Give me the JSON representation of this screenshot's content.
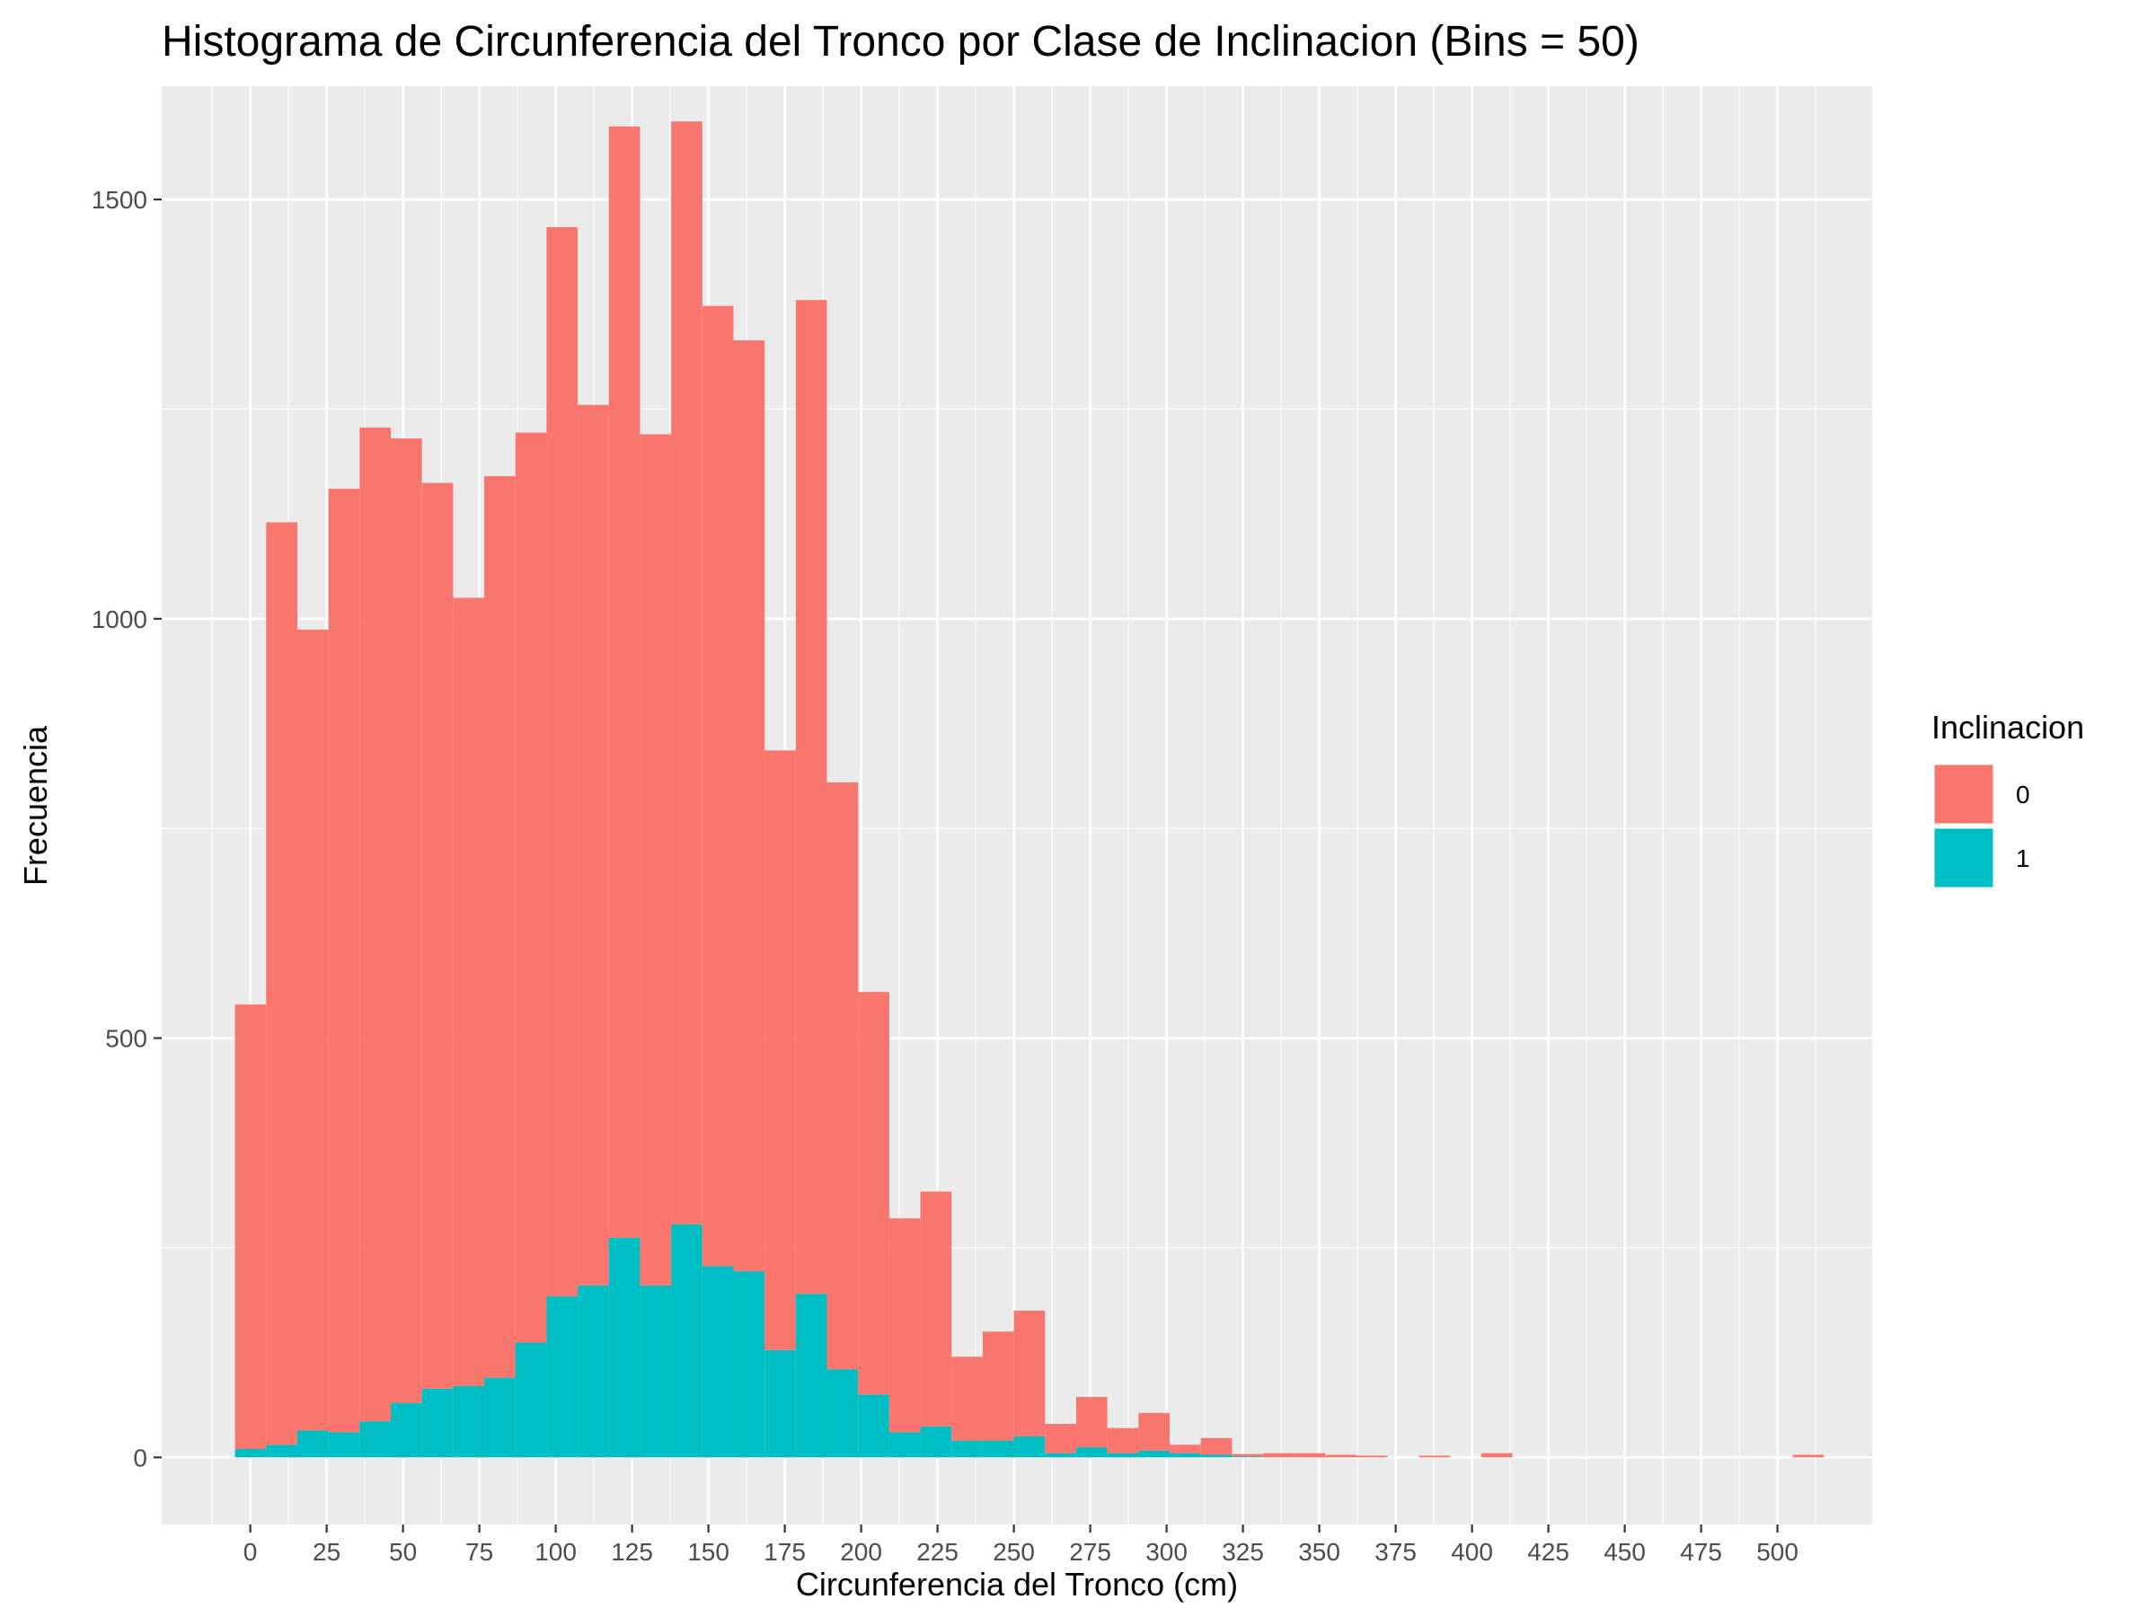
{
  "chart_data": {
    "type": "bar",
    "stacked": true,
    "title": "Histograma de Circunferencia del Tronco por Clase de Inclinacion (Bins = 50)",
    "xlabel": "Circunferencia del Tronco (cm)",
    "ylabel": "Frecuencia",
    "xlim": [
      -29,
      531
    ],
    "ylim": [
      -80,
      1635
    ],
    "x_ticks": [
      0,
      25,
      50,
      75,
      100,
      125,
      150,
      175,
      200,
      225,
      250,
      275,
      300,
      325,
      350,
      375,
      400,
      425,
      450,
      475,
      500
    ],
    "x_tick_labels": [
      "0",
      "25",
      "50",
      "75",
      "100",
      "125",
      "150",
      "175",
      "200",
      "225",
      "250",
      "275",
      "300",
      "325",
      "350",
      "375",
      "400",
      "425",
      "450",
      "475",
      "500"
    ],
    "y_ticks": [
      0,
      500,
      1000,
      1500
    ],
    "y_tick_labels": [
      "0",
      "500",
      "1000",
      "1500"
    ],
    "grid": true,
    "bin_start": -5,
    "bin_width": 10.2,
    "legend": {
      "title": "Inclinacion",
      "position": "right",
      "entries": [
        {
          "label": "0",
          "color": "#F8766D"
        },
        {
          "label": "1",
          "color": "#00BFC4"
        }
      ]
    },
    "series": [
      {
        "name": "0",
        "color": "#F8766D",
        "values": [
          530,
          1100,
          955,
          1125,
          1185,
          1150,
          1080,
          940,
          1075,
          1085,
          1275,
          1050,
          1325,
          1015,
          1315,
          1145,
          1110,
          715,
          1185,
          700,
          480,
          255,
          280,
          100,
          130,
          150,
          35,
          60,
          30,
          45,
          10,
          20,
          3,
          5,
          5,
          3,
          2,
          0,
          2,
          0,
          5,
          0,
          0,
          0,
          0,
          0,
          0,
          0,
          0,
          0,
          3
        ]
      },
      {
        "name": "1",
        "color": "#00BFC4",
        "values": [
          10,
          15,
          32,
          30,
          43,
          65,
          82,
          85,
          95,
          137,
          192,
          205,
          262,
          205,
          278,
          228,
          222,
          128,
          195,
          105,
          75,
          30,
          37,
          20,
          20,
          25,
          5,
          12,
          5,
          8,
          5,
          3,
          1,
          0,
          0,
          0,
          0,
          0,
          0,
          0,
          0,
          0,
          0,
          0,
          0,
          0,
          0,
          0,
          0,
          0,
          0
        ]
      }
    ]
  }
}
